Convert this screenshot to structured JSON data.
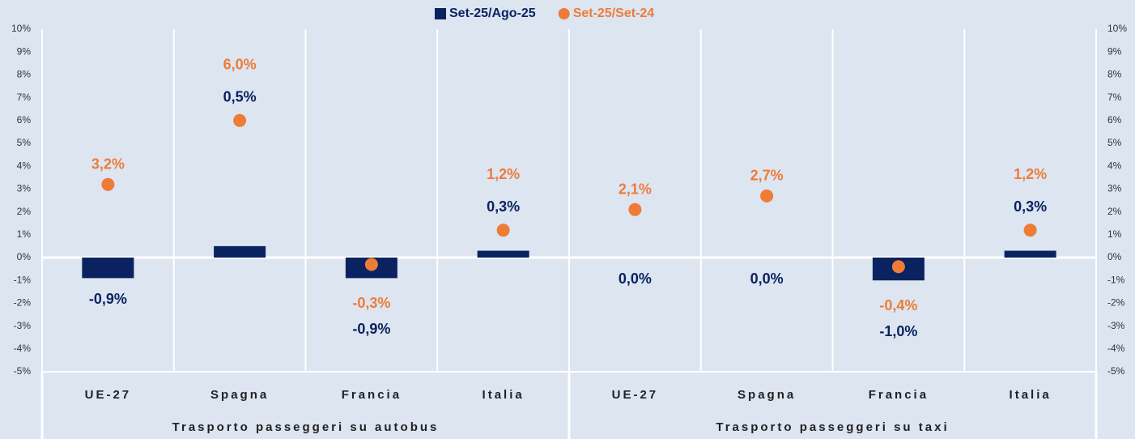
{
  "chart_data": {
    "type": "bar",
    "categories": [
      "UE-27",
      "Spagna",
      "Francia",
      "Italia",
      "UE-27",
      "Spagna",
      "Francia",
      "Italia"
    ],
    "category_groups": [
      "Trasporto passeggeri su autobus",
      "Trasporto passeggeri su taxi"
    ],
    "series": [
      {
        "name": "Set-25/Ago-25",
        "type": "bar",
        "color": "#0b2260",
        "values": [
          -0.9,
          0.5,
          -0.9,
          0.3,
          0.0,
          0.0,
          -1.0,
          0.3
        ],
        "value_labels": [
          "-0,9%",
          "0,5%",
          "-0,9%",
          "0,3%",
          "0,0%",
          "0,0%",
          "-1,0%",
          "0,3%"
        ]
      },
      {
        "name": "Set-25/Set-24",
        "type": "scatter",
        "axis": "y2",
        "color": "#ee7b36",
        "values": [
          3.2,
          6.0,
          -0.3,
          1.2,
          2.1,
          2.7,
          -0.4,
          1.2
        ],
        "value_labels": [
          "3,2%",
          "6,0%",
          "-0,3%",
          "1,2%",
          "2,1%",
          "2,7%",
          "-0,4%",
          "1,2%"
        ]
      }
    ],
    "ylim": [
      -5,
      10
    ],
    "yticks": [
      {
        "value": -5,
        "label": "-5%"
      },
      {
        "value": -4,
        "label": "-4%"
      },
      {
        "value": -3,
        "label": "-3%"
      },
      {
        "value": -2,
        "label": "-2%"
      },
      {
        "value": -1,
        "label": "-1%"
      },
      {
        "value": 0,
        "label": "0%"
      },
      {
        "value": 1,
        "label": "1%"
      },
      {
        "value": 2,
        "label": "2%"
      },
      {
        "value": 3,
        "label": "3%"
      },
      {
        "value": 4,
        "label": "4%"
      },
      {
        "value": 5,
        "label": "5%"
      },
      {
        "value": 6,
        "label": "6%"
      },
      {
        "value": 7,
        "label": "7%"
      },
      {
        "value": 8,
        "label": "8%"
      },
      {
        "value": 9,
        "label": "9%"
      },
      {
        "value": 10,
        "label": "10%"
      }
    ],
    "y2lim": [
      -5,
      10
    ],
    "y2ticks": [
      {
        "value": -5,
        "label": "-5%"
      },
      {
        "value": -4,
        "label": "-4%"
      },
      {
        "value": -3,
        "label": "-3%"
      },
      {
        "value": -2,
        "label": "-2%"
      },
      {
        "value": -1,
        "label": "-1%"
      },
      {
        "value": 0,
        "label": "0%"
      },
      {
        "value": 1,
        "label": "1%"
      },
      {
        "value": 2,
        "label": "2%"
      },
      {
        "value": 3,
        "label": "3%"
      },
      {
        "value": 4,
        "label": "4%"
      },
      {
        "value": 5,
        "label": "5%"
      },
      {
        "value": 6,
        "label": "6%"
      },
      {
        "value": 7,
        "label": "7%"
      },
      {
        "value": 8,
        "label": "8%"
      },
      {
        "value": 9,
        "label": "9%"
      },
      {
        "value": 10,
        "label": "10%"
      }
    ],
    "grid": false,
    "legend": "top"
  }
}
